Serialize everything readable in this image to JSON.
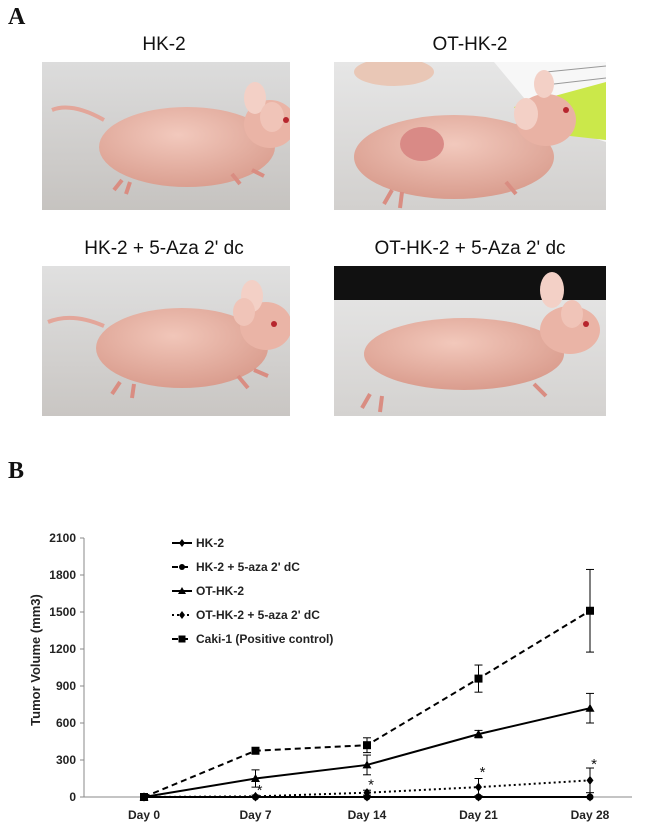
{
  "panel_a": {
    "label": "A",
    "photos": [
      {
        "title": "HK-2",
        "icon": "mouse-photo",
        "background": "light-gray",
        "tumor": false
      },
      {
        "title": "OT-HK-2",
        "icon": "mouse-photo-with-tumor",
        "background": "light-gray-with-ruler",
        "tumor": true
      },
      {
        "title": "HK-2 + 5-Aza 2' dc",
        "icon": "mouse-photo",
        "background": "light-gray",
        "tumor": false
      },
      {
        "title": "OT-HK-2 + 5-Aza 2' dc",
        "icon": "mouse-photo",
        "background": "dark-top",
        "tumor": false
      }
    ]
  },
  "panel_b": {
    "label": "B"
  },
  "chart_data": {
    "type": "line",
    "ylabel": "Tumor Volume (mm3)",
    "categories": [
      "Day 0",
      "Day 7",
      "Day 14",
      "Day 21",
      "Day 28"
    ],
    "ylim": [
      0,
      2100
    ],
    "yticks": [
      0,
      300,
      600,
      900,
      1200,
      1500,
      1800,
      2100
    ],
    "legend_position": "top-left",
    "series": [
      {
        "name": "HK-2",
        "marker": "diamond",
        "line": "solid",
        "color": "#000000",
        "values": [
          0,
          0,
          0,
          0,
          0
        ]
      },
      {
        "name": "HK-2 +  5-aza 2' dC",
        "marker": "circle",
        "line": "dashed",
        "color": "#000000",
        "values": [
          0,
          0,
          0,
          0,
          0
        ]
      },
      {
        "name": "OT-HK-2",
        "marker": "triangle",
        "line": "solid",
        "color": "#000000",
        "values": [
          0,
          150,
          260,
          510,
          720
        ],
        "errors": [
          0,
          70,
          80,
          30,
          120
        ]
      },
      {
        "name": "OT-HK-2 + 5-aza 2' dC",
        "marker": "diamond",
        "line": "dotted",
        "color": "#000000",
        "values": [
          0,
          5,
          35,
          80,
          135
        ],
        "errors": [
          0,
          10,
          20,
          70,
          100
        ]
      },
      {
        "name": "Caki-1 (Positive control)",
        "marker": "square",
        "line": "dashed",
        "color": "#000000",
        "values": [
          0,
          375,
          420,
          960,
          1510
        ],
        "errors": [
          0,
          20,
          60,
          110,
          335
        ]
      }
    ],
    "annotations": [
      {
        "text": "*",
        "category": "Day 7",
        "value": 65
      },
      {
        "text": "*",
        "category": "Day 14",
        "value": 110
      },
      {
        "text": "*",
        "category": "Day 21",
        "value": 210
      },
      {
        "text": "*",
        "category": "Day 28",
        "value": 275
      }
    ]
  }
}
